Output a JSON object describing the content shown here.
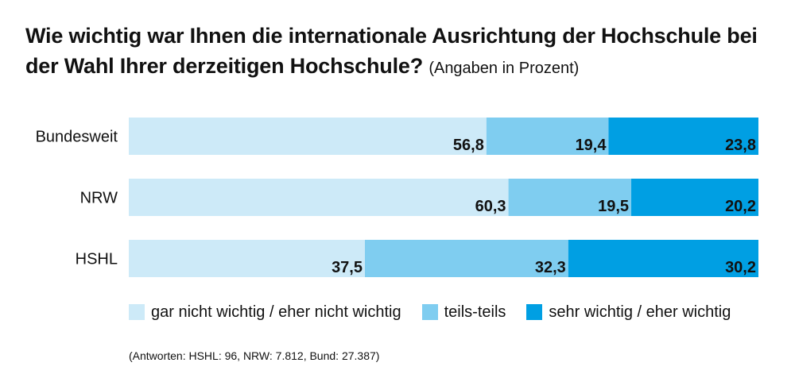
{
  "title": {
    "main": "Wie wichtig war Ihnen die internationale Ausrichtung der Hochschule bei der Wahl Ihrer derzeitigen Hochschule?",
    "unit": "(Angaben in Prozent)"
  },
  "chart_data": {
    "type": "bar",
    "orientation": "horizontal",
    "stacked": true,
    "categories": [
      "Bundesweit",
      "NRW",
      "HSHL"
    ],
    "series": [
      {
        "name": "gar nicht wichtig / eher nicht wichtig",
        "color": "#cdeaf8",
        "values": [
          56.8,
          60.3,
          37.5
        ],
        "labels": [
          "56,8",
          "60,3",
          "37,5"
        ]
      },
      {
        "name": "teils-teils",
        "color": "#7fcdf0",
        "values": [
          19.4,
          19.5,
          32.3
        ],
        "labels": [
          "19,4",
          "19,5",
          "32,3"
        ]
      },
      {
        "name": "sehr wichtig / eher wichtig",
        "color": "#009fe3",
        "values": [
          23.8,
          20.2,
          30.2
        ],
        "labels": [
          "23,8",
          "20,2",
          "30,2"
        ]
      }
    ],
    "xlim": [
      0,
      100
    ],
    "grid": false,
    "legend_position": "bottom"
  },
  "footnote": "(Antworten: HSHL: 96, NRW: 7.812, Bund: 27.387)"
}
